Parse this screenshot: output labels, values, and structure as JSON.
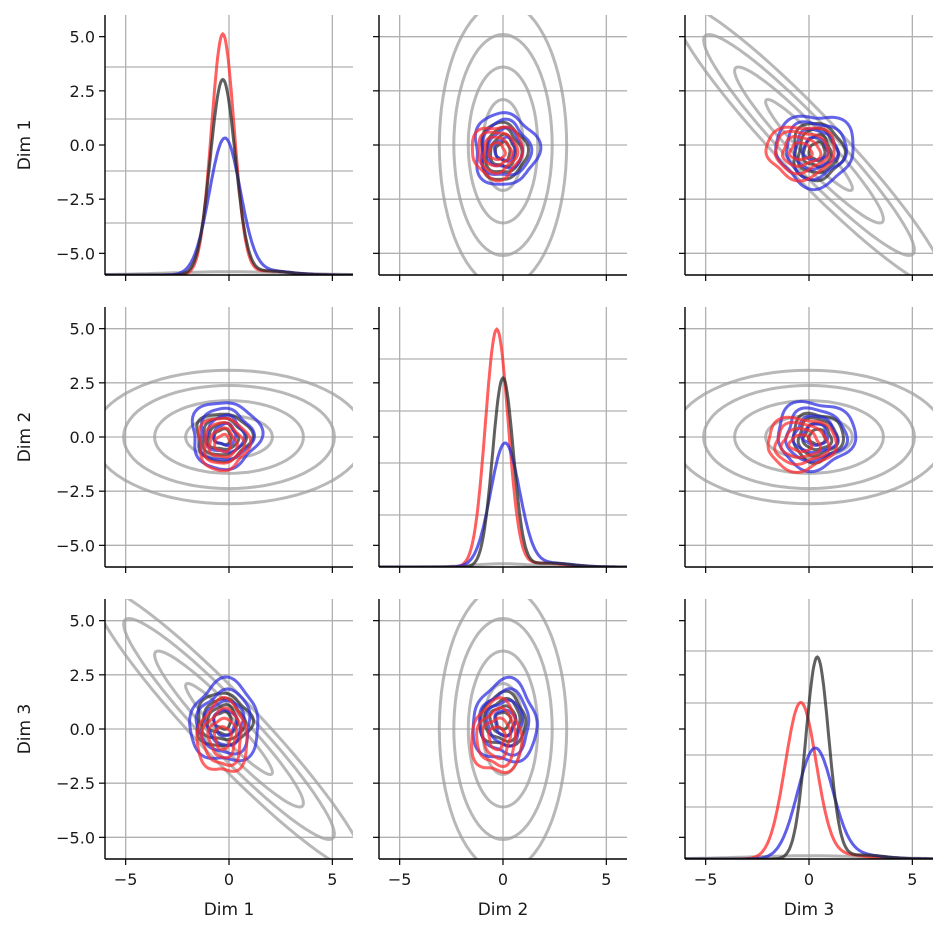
{
  "chart_data": {
    "type": "pairplot",
    "variables": [
      "Dim 1",
      "Dim 2",
      "Dim 3"
    ],
    "xlim": [
      -6,
      6
    ],
    "ylim": [
      -6,
      6
    ],
    "ticks": [
      -5,
      -2.5,
      0,
      2.5,
      5
    ],
    "x_tick_labels": [
      "−5",
      "0",
      "5"
    ],
    "x_tick_values": [
      -5,
      0,
      5
    ],
    "y_tick_labels": [
      "−5.0",
      "−2.5",
      "0.0",
      "2.5",
      "5.0"
    ],
    "grid": true,
    "colors": {
      "red": "#ff2a2a",
      "blue": "#2a2ae0",
      "black": "#2b2b2b",
      "gray": "#9c9c9c",
      "grid": "#b0b0b0"
    },
    "series": [
      {
        "color_key": "red",
        "means": [
          -0.3,
          -0.3,
          -0.4
        ],
        "sds": [
          0.55,
          0.55,
          0.75
        ],
        "peak_density": [
          0.74,
          0.73,
          0.48
        ]
      },
      {
        "color_key": "blue",
        "means": [
          -0.2,
          0.1,
          0.3
        ],
        "sds": [
          0.75,
          0.7,
          0.85
        ],
        "peak_density": [
          0.42,
          0.38,
          0.34
        ]
      },
      {
        "color_key": "black",
        "means": [
          -0.3,
          0.0,
          0.4
        ],
        "sds": [
          0.6,
          0.5,
          0.55
        ],
        "peak_density": [
          0.6,
          0.58,
          0.62
        ]
      },
      {
        "color_key": "gray",
        "means": [
          0.0,
          0.0,
          0.0
        ],
        "sds": [
          3.0,
          1.4,
          3.0
        ],
        "peak_density": [
          0.01,
          0.01,
          0.01
        ],
        "correlations": {
          "1-2": 0.0,
          "1-3": -0.95,
          "2-3": 0.0
        }
      }
    ],
    "contour_levels": [
      0.35,
      0.6,
      0.85,
      1.1
    ]
  }
}
